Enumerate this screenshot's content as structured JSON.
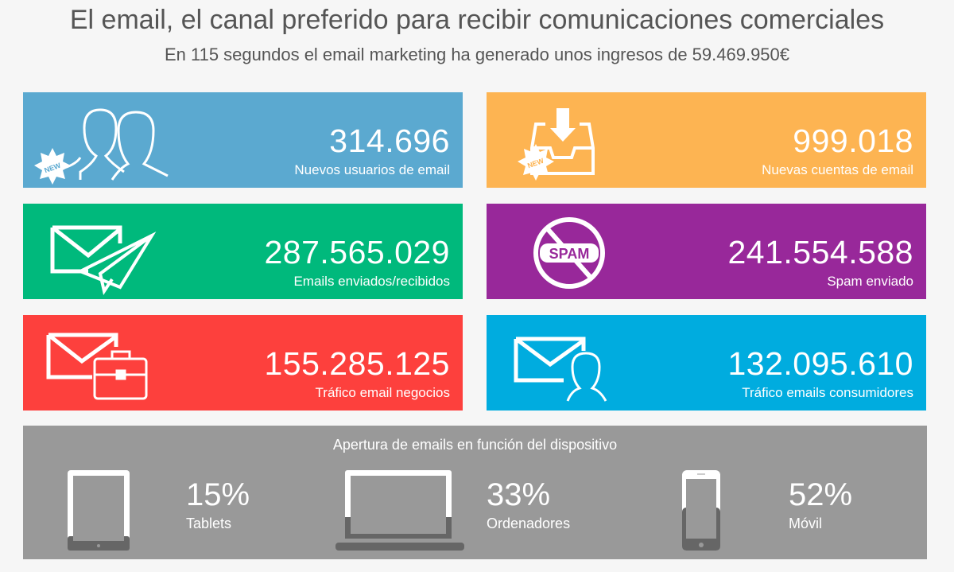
{
  "header": {
    "title": "El email, el canal preferido para recibir comunicaciones comerciales",
    "subtitle": "En 115 segundos el email marketing ha generado unos ingresos de 59.469.950€"
  },
  "cards": [
    {
      "value": "314.696",
      "label": "Nuevos usuarios de email",
      "icon": "new-users-icon",
      "badge": "NEW",
      "color": "#5ba9d0"
    },
    {
      "value": "999.018",
      "label": "Nuevas cuentas de email",
      "icon": "new-inbox-icon",
      "badge": "NEW",
      "color": "#fdb452"
    },
    {
      "value": "287.565.029",
      "label": "Emails enviados/recibidos",
      "icon": "envelope-paper-plane-icon",
      "color": "#00b97c"
    },
    {
      "value": "241.554.588",
      "label": "Spam enviado",
      "icon": "no-spam-icon",
      "badge": "SPAM",
      "color": "#98289a"
    },
    {
      "value": "155.285.125",
      "label": "Tráfico email negocios",
      "icon": "envelope-briefcase-icon",
      "color": "#fd403d"
    },
    {
      "value": "132.095.610",
      "label": "Tráfico emails consumidores",
      "icon": "envelope-user-icon",
      "color": "#00acdf"
    }
  ],
  "devices": {
    "title": "Apertura de emails en función del dispositivo",
    "items": [
      {
        "percent": "15%",
        "label": "Tablets",
        "fill": 15
      },
      {
        "percent": "33%",
        "label": "Ordenadores",
        "fill": 33
      },
      {
        "percent": "52%",
        "label": "Móvil",
        "fill": 52
      }
    ]
  }
}
